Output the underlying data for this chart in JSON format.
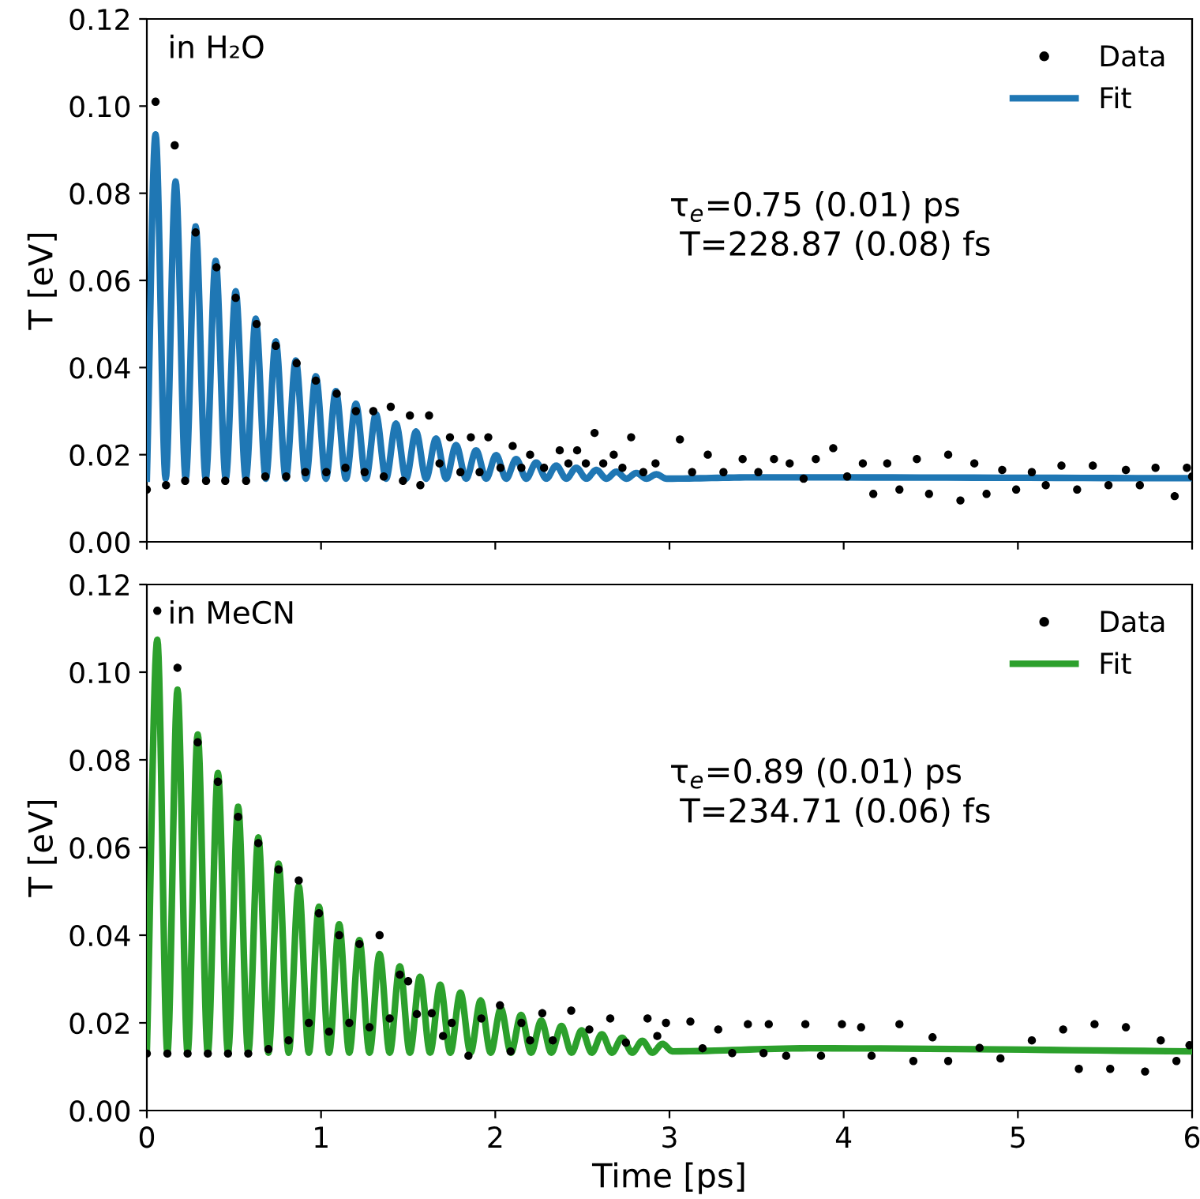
{
  "chart_data": [
    {
      "type": "line",
      "ylabel": "T [eV]",
      "xlim": [
        0,
        6
      ],
      "xticks": [
        0,
        1,
        2,
        3,
        4,
        5,
        6
      ],
      "ylim": [
        0,
        0.12
      ],
      "yticks": [
        {
          "value": 0,
          "label": "0.00"
        },
        {
          "value": 0.02,
          "label": "0.02"
        },
        {
          "value": 0.04,
          "label": "0.04"
        },
        {
          "value": 0.06,
          "label": "0.06"
        },
        {
          "value": 0.08,
          "label": "0.08"
        },
        {
          "value": 0.1,
          "label": "0.10"
        },
        {
          "value": 0.12,
          "label": "0.12"
        }
      ],
      "tick_labels": "y",
      "legend": "top right",
      "annotations": [
        "in H₂O",
        "τ$_{e}$=0.75 (0.01) ps",
        " T=228.87 (0.08) fs"
      ],
      "series": [
        {
          "name": "Data",
          "type": "scatter",
          "marker": "circle",
          "color": "#000000",
          "x": [
            0,
            0.05,
            0.11,
            0.16,
            0.22,
            0.28,
            0.34,
            0.4,
            0.45,
            0.51,
            0.57,
            0.63,
            0.68,
            0.74,
            0.8,
            0.86,
            0.91,
            0.97,
            1.03,
            1.09,
            1.14,
            1.2,
            1.25,
            1.3,
            1.36,
            1.4,
            1.47,
            1.51,
            1.57,
            1.62,
            1.68,
            1.74,
            1.8,
            1.86,
            1.91,
            1.96,
            2.03,
            2.1,
            2.15,
            2.2,
            2.28,
            2.37,
            2.42,
            2.47,
            2.52,
            2.57,
            2.62,
            2.68,
            2.73,
            2.78,
            2.85,
            2.92,
            3.06,
            3.13,
            3.22,
            3.31,
            3.42,
            3.51,
            3.6,
            3.69,
            3.77,
            3.84,
            3.94,
            4.02,
            4.11,
            4.17,
            4.25,
            4.32,
            4.42,
            4.49,
            4.6,
            4.67,
            4.75,
            4.82,
            4.91,
            4.99,
            5.08,
            5.16,
            5.25,
            5.34,
            5.43,
            5.52,
            5.62,
            5.7,
            5.79,
            5.9,
            5.97,
            6.0
          ],
          "values": [
            0.012,
            0.101,
            0.013,
            0.091,
            0.014,
            0.071,
            0.014,
            0.063,
            0.014,
            0.056,
            0.014,
            0.05,
            0.015,
            0.045,
            0.015,
            0.041,
            0.016,
            0.037,
            0.016,
            0.034,
            0.017,
            0.03,
            0.016,
            0.03,
            0.015,
            0.031,
            0.014,
            0.029,
            0.013,
            0.029,
            0.018,
            0.024,
            0.016,
            0.024,
            0.016,
            0.024,
            0.017,
            0.022,
            0.017,
            0.02,
            0.017,
            0.021,
            0.018,
            0.021,
            0.018,
            0.025,
            0.018,
            0.02,
            0.017,
            0.024,
            0.016,
            0.018,
            0.0235,
            0.016,
            0.02,
            0.016,
            0.019,
            0.016,
            0.019,
            0.018,
            0.0145,
            0.019,
            0.0215,
            0.015,
            0.018,
            0.011,
            0.018,
            0.012,
            0.019,
            0.011,
            0.02,
            0.0095,
            0.018,
            0.011,
            0.0165,
            0.012,
            0.016,
            0.013,
            0.0175,
            0.012,
            0.0175,
            0.013,
            0.0165,
            0.013,
            0.017,
            0.0105,
            0.017,
            0.015
          ]
        },
        {
          "name": "Fit",
          "color": "#1f77b4",
          "x": [
            0,
            0.05,
            0.108,
            0.165,
            0.223,
            0.28,
            0.338,
            0.395,
            0.453,
            0.51,
            0.568,
            0.625,
            0.683,
            0.74,
            0.798,
            0.855,
            0.913,
            0.97,
            1.028,
            1.085,
            1.143,
            1.2,
            1.258,
            1.315,
            1.373,
            1.43,
            1.488,
            1.545,
            1.603,
            1.66,
            1.718,
            1.775,
            1.833,
            1.89,
            1.948,
            2.005,
            2.063,
            2.12,
            2.178,
            2.235,
            2.293,
            2.35,
            2.408,
            2.465,
            2.523,
            2.58,
            2.638,
            2.695,
            2.753,
            2.81,
            2.868,
            2.925,
            2.983,
            3.5,
            6
          ],
          "values": [
            0.0145,
            0.0935,
            0.0145,
            0.0827,
            0.0145,
            0.0724,
            0.0145,
            0.0645,
            0.0145,
            0.0575,
            0.0145,
            0.0512,
            0.0145,
            0.046,
            0.0145,
            0.0416,
            0.0145,
            0.038,
            0.0145,
            0.0346,
            0.0145,
            0.0317,
            0.0145,
            0.0293,
            0.0145,
            0.0271,
            0.0145,
            0.0253,
            0.0145,
            0.0237,
            0.0145,
            0.0222,
            0.0145,
            0.021,
            0.0145,
            0.0199,
            0.0145,
            0.019,
            0.0145,
            0.0182,
            0.0145,
            0.0175,
            0.0145,
            0.017,
            0.0145,
            0.0165,
            0.0145,
            0.0161,
            0.0145,
            0.0158,
            0.0145,
            0.0155,
            0.0145,
            0.0148,
            0.0146
          ]
        }
      ]
    },
    {
      "type": "line",
      "xlabel": "Time [ps]",
      "ylabel": "T [eV]",
      "xlim": [
        0,
        6
      ],
      "xticks": [
        0,
        1,
        2,
        3,
        4,
        5,
        6
      ],
      "ylim": [
        0,
        0.12
      ],
      "yticks": [
        {
          "value": 0,
          "label": "0.00"
        },
        {
          "value": 0.02,
          "label": "0.02"
        },
        {
          "value": 0.04,
          "label": "0.04"
        },
        {
          "value": 0.06,
          "label": "0.06"
        },
        {
          "value": 0.08,
          "label": "0.08"
        },
        {
          "value": 0.1,
          "label": "0.10"
        },
        {
          "value": 0.12,
          "label": "0.12"
        }
      ],
      "legend": "top right",
      "annotations": [
        "in MeCN",
        "τ$_{e}$=0.89 (0.01) ps",
        " T=234.71 (0.06) fs"
      ],
      "series": [
        {
          "name": "Data",
          "type": "scatter",
          "marker": "circle",
          "color": "#000000",
          "x": [
            0,
            0.06,
            0.118,
            0.176,
            0.234,
            0.292,
            0.35,
            0.408,
            0.466,
            0.524,
            0.582,
            0.64,
            0.698,
            0.756,
            0.814,
            0.872,
            0.93,
            0.988,
            1.046,
            1.104,
            1.162,
            1.22,
            1.278,
            1.336,
            1.394,
            1.452,
            1.5,
            1.55,
            1.635,
            1.7,
            1.75,
            1.846,
            1.92,
            2.027,
            2.088,
            2.15,
            2.2,
            2.27,
            2.33,
            2.436,
            2.54,
            2.66,
            2.75,
            2.874,
            2.93,
            2.98,
            3.12,
            3.19,
            3.28,
            3.36,
            3.45,
            3.54,
            3.57,
            3.67,
            3.78,
            3.87,
            3.99,
            4.1,
            4.16,
            4.32,
            4.4,
            4.51,
            4.6,
            4.78,
            4.9,
            5.08,
            5.26,
            5.35,
            5.44,
            5.53,
            5.62,
            5.73,
            5.82,
            5.91,
            5.985
          ],
          "values": [
            0.013,
            0.114,
            0.013,
            0.101,
            0.013,
            0.084,
            0.013,
            0.075,
            0.013,
            0.067,
            0.013,
            0.061,
            0.014,
            0.055,
            0.016,
            0.0525,
            0.02,
            0.045,
            0.018,
            0.04,
            0.02,
            0.038,
            0.019,
            0.04,
            0.021,
            0.031,
            0.0295,
            0.022,
            0.0222,
            0.017,
            0.02,
            0.0125,
            0.021,
            0.024,
            0.0135,
            0.02,
            0.016,
            0.0222,
            0.016,
            0.0228,
            0.0185,
            0.021,
            0.0155,
            0.021,
            0.017,
            0.02,
            0.0203,
            0.0142,
            0.0185,
            0.0131,
            0.0197,
            0.0131,
            0.0197,
            0.0125,
            0.0197,
            0.0125,
            0.0197,
            0.019,
            0.0125,
            0.0197,
            0.0113,
            0.0167,
            0.0113,
            0.0143,
            0.0119,
            0.016,
            0.0185,
            0.0095,
            0.0197,
            0.0095,
            0.019,
            0.0089,
            0.016,
            0.0113,
            0.0149
          ]
        },
        {
          "name": "Fit",
          "color": "#2ca02c",
          "x": [
            0,
            0.06,
            0.118,
            0.176,
            0.234,
            0.292,
            0.35,
            0.408,
            0.466,
            0.524,
            0.582,
            0.64,
            0.698,
            0.756,
            0.814,
            0.872,
            0.93,
            0.988,
            1.046,
            1.104,
            1.162,
            1.22,
            1.278,
            1.336,
            1.394,
            1.452,
            1.51,
            1.568,
            1.626,
            1.684,
            1.742,
            1.8,
            1.858,
            1.916,
            1.974,
            2.032,
            2.09,
            2.148,
            2.206,
            2.264,
            2.322,
            2.38,
            2.438,
            2.496,
            2.554,
            2.612,
            2.67,
            2.728,
            2.786,
            2.844,
            2.902,
            2.96,
            3.018,
            3.8,
            6
          ],
          "values": [
            0.0132,
            0.1074,
            0.0132,
            0.096,
            0.0132,
            0.0858,
            0.0132,
            0.077,
            0.0132,
            0.0693,
            0.0132,
            0.0623,
            0.0132,
            0.0563,
            0.0132,
            0.0512,
            0.0132,
            0.0465,
            0.0132,
            0.0425,
            0.0132,
            0.0389,
            0.0132,
            0.0357,
            0.0132,
            0.0329,
            0.0132,
            0.0305,
            0.0132,
            0.0287,
            0.0132,
            0.0269,
            0.0132,
            0.0251,
            0.0132,
            0.0233,
            0.0132,
            0.0218,
            0.0132,
            0.0205,
            0.0132,
            0.0193,
            0.0132,
            0.0183,
            0.0132,
            0.0174,
            0.0132,
            0.0166,
            0.0132,
            0.0159,
            0.0132,
            0.0152,
            0.0135,
            0.0142,
            0.0135
          ]
        }
      ]
    }
  ]
}
